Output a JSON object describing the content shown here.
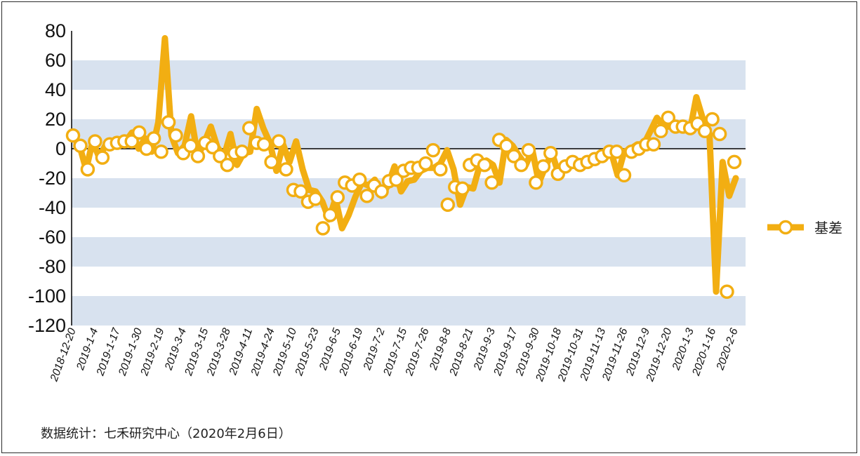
{
  "source_note": "数据统计：七禾研究中心（2020年2月6日）",
  "colors": {
    "line": "#F2AE12",
    "marker_fill": "#FFFFFF",
    "marker_stroke": "#F2AE12",
    "band": "#D8E2EF",
    "zero_line": "#000000"
  },
  "chart_data": {
    "type": "line",
    "legend_position": "right",
    "ylim": [
      -120,
      80
    ],
    "yticks": [
      80,
      60,
      40,
      20,
      0,
      -20,
      -40,
      -60,
      -80,
      -100,
      -120
    ],
    "xtick_labels": [
      "2018-12-20",
      "2019-1-4",
      "2019-1-17",
      "2019-1-30",
      "2019-2-19",
      "2019-3-4",
      "2019-3-15",
      "2019-3-28",
      "2019-4-11",
      "2019-4-24",
      "2019-5-10",
      "2019-5-23",
      "2019-6-5",
      "2019-6-19",
      "2019-7-2",
      "2019-7-15",
      "2019-7-26",
      "2019-8-8",
      "2019-8-21",
      "2019-9-3",
      "2019-9-17",
      "2019-9-30",
      "2019-10-18",
      "2019-10-31",
      "2019-11-13",
      "2019-11-26",
      "2019-12-9",
      "2019-12-20",
      "2020-1-3",
      "2020-1-16",
      "2020-2-6"
    ],
    "series": [
      {
        "name": "基差",
        "marker_values": [
          9,
          2,
          -14,
          5,
          -6,
          3,
          4,
          5,
          5,
          11,
          0,
          7,
          -2,
          18,
          9,
          -3,
          2,
          -5,
          4,
          1,
          -5,
          -11,
          -3,
          -2,
          14,
          4,
          3,
          -9,
          5,
          -14,
          -28,
          -29,
          -36,
          -34,
          -54,
          -45,
          -33,
          -23,
          -25,
          -21,
          -32,
          -25,
          -29,
          -22,
          -21,
          -15,
          -13,
          -13,
          -10,
          -1,
          -14,
          -38,
          -26,
          -27,
          -11,
          -8,
          -11,
          -23,
          6,
          2,
          -5,
          -11,
          -1,
          -23,
          -12,
          -3,
          -17,
          -12,
          -9,
          -11,
          -9,
          -7,
          -5,
          -2,
          -2,
          -18,
          -2,
          0,
          3,
          3,
          12,
          21,
          15,
          15,
          14,
          17,
          12,
          20,
          10,
          -97,
          -9
        ],
        "line_values": [
          9,
          2,
          -14,
          5,
          -6,
          3,
          4,
          5,
          5,
          11,
          0,
          7,
          -2,
          18,
          75,
          9,
          -3,
          2,
          22,
          -5,
          4,
          15,
          1,
          -5,
          10,
          -11,
          -3,
          -2,
          27,
          14,
          4,
          -15,
          3,
          -9,
          5,
          -14,
          -28,
          -29,
          -36,
          -48,
          -34,
          -54,
          -45,
          -33,
          -23,
          -25,
          -21,
          -32,
          -25,
          -12,
          -29,
          -22,
          -21,
          -15,
          -13,
          -13,
          -10,
          -1,
          -14,
          -38,
          -26,
          -27,
          -11,
          -8,
          -11,
          -23,
          6,
          2,
          -5,
          -11,
          -1,
          -23,
          -12,
          -3,
          -17,
          -12,
          -9,
          -11,
          -9,
          -7,
          -5,
          -2,
          -2,
          -18,
          -2,
          0,
          3,
          3,
          12,
          21,
          15,
          15,
          14,
          17,
          12,
          35,
          20,
          10,
          -97,
          -9,
          -32,
          -20
        ]
      }
    ]
  }
}
